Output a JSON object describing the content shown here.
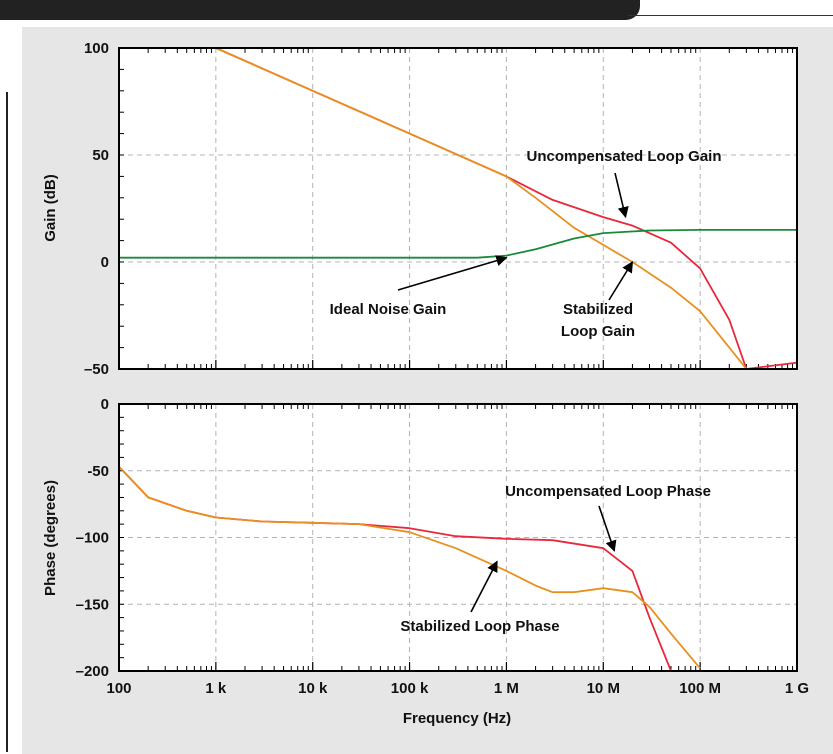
{
  "chart_data": [
    {
      "type": "line",
      "xscale": "log",
      "xlim": [
        100,
        1000000000
      ],
      "ylim": [
        -50,
        100
      ],
      "ylabel": "Gain (dB)",
      "y_ticks": [
        {
          "value": 100,
          "label": "100"
        },
        {
          "value": 50,
          "label": "50"
        },
        {
          "value": 0,
          "label": "0"
        },
        {
          "value": -50,
          "label": "–50"
        }
      ],
      "grid": true,
      "series": [
        {
          "key": "uncomp_gain",
          "color": "#e8283c",
          "x": [
            1000,
            10000,
            100000,
            1000000,
            3000000,
            10000000,
            20000000,
            50000000,
            100000000,
            200000000,
            300000000,
            1000000000
          ],
          "y": [
            100,
            80,
            60,
            40,
            29,
            21,
            17,
            9,
            -3,
            -27,
            -50,
            -47
          ]
        },
        {
          "key": "stab_gain",
          "color": "#e8901e",
          "x": [
            1000,
            10000,
            100000,
            1000000,
            2000000,
            5000000,
            10000000,
            20000000,
            50000000,
            100000000,
            200000000,
            300000000
          ],
          "y": [
            100,
            80,
            60,
            40,
            30,
            16,
            8,
            0,
            -12,
            -23,
            -40,
            -50
          ]
        },
        {
          "key": "noise_gain",
          "color": "#1a8a3a",
          "x": [
            100,
            100000,
            500000,
            1000000,
            2000000,
            5000000,
            10000000,
            30000000,
            100000000,
            1000000000
          ],
          "y": [
            2,
            2,
            2,
            3,
            6,
            11,
            13.5,
            14.7,
            15,
            15
          ]
        }
      ],
      "annotations": [
        {
          "text": "Uncompensated Loop Gain",
          "arrow_to": [
            17000000,
            21
          ]
        },
        {
          "text": "Ideal Noise Gain",
          "arrow_to": [
            1000000,
            2
          ]
        },
        {
          "lines": [
            "Stabilized",
            "Loop Gain"
          ],
          "arrow_to": [
            20000000,
            0
          ]
        }
      ]
    },
    {
      "type": "line",
      "xscale": "log",
      "xlim": [
        100,
        1000000000
      ],
      "ylim": [
        -200,
        0
      ],
      "xlabel": "Frequency (Hz)",
      "ylabel": "Phase (degrees)",
      "x_ticks": [
        {
          "value": 100,
          "label": "100"
        },
        {
          "value": 1000,
          "label": "1 k"
        },
        {
          "value": 10000,
          "label": "10 k"
        },
        {
          "value": 100000,
          "label": "100 k"
        },
        {
          "value": 1000000,
          "label": "1 M"
        },
        {
          "value": 10000000,
          "label": "10 M"
        },
        {
          "value": 100000000,
          "label": "100 M"
        },
        {
          "value": 1000000000,
          "label": "1 G"
        }
      ],
      "y_ticks": [
        {
          "value": 0,
          "label": "0"
        },
        {
          "value": -50,
          "label": "-50"
        },
        {
          "value": -100,
          "label": "–100"
        },
        {
          "value": -150,
          "label": "–150"
        },
        {
          "value": -200,
          "label": "–200"
        }
      ],
      "grid": true,
      "series": [
        {
          "key": "uncomp_phase",
          "color": "#e8283c",
          "x": [
            100,
            200,
            500,
            1000,
            3000,
            10000,
            30000,
            100000,
            300000,
            1000000,
            3000000,
            10000000,
            20000000,
            30000000,
            50000000
          ],
          "y": [
            -47,
            -70,
            -80,
            -85,
            -88,
            -89,
            -90,
            -93,
            -99,
            -101,
            -102,
            -108,
            -125,
            -160,
            -200
          ]
        },
        {
          "key": "stab_phase",
          "color": "#e8901e",
          "x": [
            100,
            200,
            500,
            1000,
            3000,
            10000,
            30000,
            100000,
            300000,
            1000000,
            2000000,
            3000000,
            5000000,
            10000000,
            20000000,
            30000000,
            50000000,
            100000000
          ],
          "y": [
            -47,
            -70,
            -80,
            -85,
            -88,
            -89,
            -90,
            -96,
            -108,
            -125,
            -136,
            -141,
            -141,
            -138,
            -141,
            -152,
            -172,
            -198
          ]
        }
      ],
      "annotations": [
        {
          "text": "Uncompensated Loop Phase",
          "arrow_to": [
            13000000,
            -110
          ]
        },
        {
          "text": "Stabilized Loop Phase",
          "arrow_to": [
            800000,
            -118
          ]
        }
      ]
    }
  ]
}
